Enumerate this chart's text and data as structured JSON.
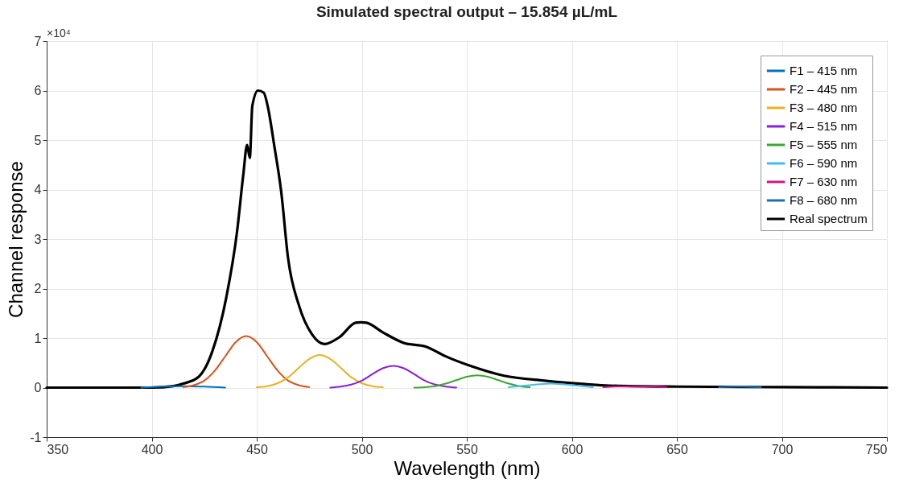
{
  "chart_data": {
    "type": "line",
    "title": "Simulated spectral output – 15.854 µL/mL",
    "xlabel": "Wavelength (nm)",
    "ylabel": "Channel response",
    "annotations": [
      "×10⁴"
    ],
    "xlim": [
      350,
      750
    ],
    "xticks": [
      350,
      400,
      450,
      500,
      550,
      600,
      650,
      700,
      750
    ],
    "ylim": [
      -1,
      7
    ],
    "yticks": [
      -1,
      0,
      1,
      2,
      3,
      4,
      5,
      6,
      7
    ],
    "grid": true,
    "legend": "top right",
    "line_style": "solid",
    "marker": "none",
    "series": [
      {
        "name": "F1 – 415 nm",
        "color": "#0072bd",
        "x": [
          395,
          405,
          415,
          425,
          435
        ],
        "values": [
          0,
          0.02,
          0.03,
          0.02,
          0
        ]
      },
      {
        "name": "F2 – 445 nm",
        "color": "#d95319",
        "x": [
          415,
          420,
          425,
          430,
          435,
          440,
          445,
          450,
          455,
          460,
          465,
          470,
          475
        ],
        "values": [
          0.01,
          0.05,
          0.14,
          0.34,
          0.63,
          0.92,
          1.04,
          0.92,
          0.63,
          0.34,
          0.14,
          0.05,
          0.01
        ]
      },
      {
        "name": "F3 – 480 nm",
        "color": "#edb120",
        "x": [
          450,
          455,
          460,
          465,
          470,
          475,
          480,
          485,
          490,
          495,
          500,
          505,
          510
        ],
        "values": [
          0.01,
          0.03,
          0.09,
          0.21,
          0.4,
          0.58,
          0.66,
          0.58,
          0.4,
          0.21,
          0.09,
          0.03,
          0.01
        ]
      },
      {
        "name": "F4 – 515 nm",
        "color": "#8a1fd8",
        "x": [
          485,
          490,
          495,
          500,
          505,
          510,
          515,
          520,
          525,
          530,
          535,
          540,
          545
        ],
        "values": [
          0,
          0.02,
          0.06,
          0.14,
          0.27,
          0.39,
          0.44,
          0.39,
          0.27,
          0.14,
          0.06,
          0.02,
          0
        ]
      },
      {
        "name": "F5 – 555 nm",
        "color": "#3aa832",
        "x": [
          525,
          530,
          535,
          540,
          545,
          550,
          555,
          560,
          565,
          570,
          575,
          580
        ],
        "values": [
          0,
          0.01,
          0.03,
          0.08,
          0.15,
          0.22,
          0.25,
          0.22,
          0.15,
          0.08,
          0.03,
          0.01
        ]
      },
      {
        "name": "F6 – 590 nm",
        "color": "#3fbcf0",
        "x": [
          570,
          575,
          580,
          585,
          590,
          595,
          600,
          605,
          610
        ],
        "values": [
          0.01,
          0.03,
          0.05,
          0.07,
          0.08,
          0.07,
          0.05,
          0.03,
          0.01
        ]
      },
      {
        "name": "F7 – 630 nm",
        "color": "#d0158c",
        "x": [
          615,
          620,
          630,
          640,
          645
        ],
        "values": [
          0.01,
          0.02,
          0.03,
          0.02,
          0.01
        ]
      },
      {
        "name": "F8 – 680 nm",
        "color": "#1f6fb0",
        "x": [
          670,
          680,
          690
        ],
        "values": [
          0.01,
          0.02,
          0.01
        ]
      },
      {
        "name": "Real spectrum",
        "color": "#000000",
        "x": [
          350,
          400,
          410.4,
          415,
          422.4,
          429,
          435.5,
          440.6,
          443.6,
          445.4,
          446.7,
          447.9,
          450.6,
          453.3,
          455.2,
          458.3,
          461.7,
          464.9,
          470.1,
          476.4,
          482.2,
          489.4,
          497.1,
          499.5,
          502.2,
          509.9,
          520.2,
          530.4,
          539.5,
          552.3,
          567.7,
          587,
          606.3,
          617.8,
          650,
          700,
          750
        ],
        "values": [
          0,
          0,
          0.03,
          0.08,
          0.22,
          0.75,
          1.82,
          3.14,
          4.3,
          4.9,
          4.64,
          5.69,
          6.0,
          5.96,
          5.69,
          4.9,
          3.94,
          2.62,
          1.66,
          1.07,
          0.88,
          1.02,
          1.31,
          1.32,
          1.31,
          1.12,
          0.9,
          0.83,
          0.64,
          0.43,
          0.24,
          0.14,
          0.07,
          0.04,
          0.02,
          0.01,
          0
        ]
      }
    ]
  }
}
